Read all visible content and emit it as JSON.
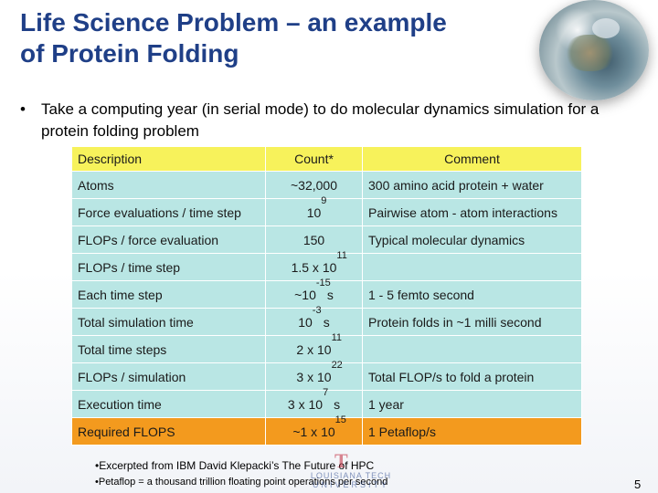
{
  "title": {
    "line1": "Life Science Problem – an example",
    "line2": "of Protein Folding"
  },
  "bullet": {
    "symbol": "•",
    "text": "Take a computing year (in serial mode) to do molecular dynamics simulation for a protein folding problem"
  },
  "table": {
    "headers": [
      "Description",
      "Count*",
      "Comment"
    ],
    "rows": [
      {
        "description": "Atoms",
        "count_base": "~32,000",
        "count_exp": "",
        "count_suffix": "",
        "comment": "300 amino acid protein + water"
      },
      {
        "description": "Force evaluations / time step",
        "count_base": "10",
        "count_exp": "9",
        "count_suffix": "",
        "comment": "Pairwise atom - atom interactions"
      },
      {
        "description": "FLOPs / force evaluation",
        "count_base": "150",
        "count_exp": "",
        "count_suffix": "",
        "comment": "Typical molecular dynamics"
      },
      {
        "description": "FLOPs / time step",
        "count_base": "1.5 x 10",
        "count_exp": "11",
        "count_suffix": "",
        "comment": ""
      },
      {
        "description": "Each time step",
        "count_base": "~10",
        "count_exp": "-15",
        "count_suffix": "s",
        "comment": "1 - 5 femto second"
      },
      {
        "description": "Total simulation time",
        "count_base": "10",
        "count_exp": "-3",
        "count_suffix": "s",
        "comment": "Protein folds in ~1 milli second"
      },
      {
        "description": "Total time steps",
        "count_base": "2 x 10",
        "count_exp": "11",
        "count_suffix": "",
        "comment": ""
      },
      {
        "description": "FLOPs / simulation",
        "count_base": "3 x 10",
        "count_exp": "22",
        "count_suffix": "",
        "comment": "Total FLOP/s to fold a protein"
      },
      {
        "description": "Execution time",
        "count_base": "3 x 10",
        "count_exp": "7",
        "count_suffix": "s",
        "comment": "1 year"
      },
      {
        "description": "Required FLOPS",
        "count_base": "~1 x 10",
        "count_exp": "15",
        "count_suffix": "",
        "comment": "1 Petaflop/s"
      }
    ],
    "colors": {
      "header": "#f7f25b",
      "body": "#b9e6e4",
      "highlight": "#f39a1e"
    }
  },
  "footnotes": {
    "line1": "•Excerpted from IBM David Klepacki’s The Future of HPC",
    "line2": "•Petaflop = a thousand trillion floating point operations per second"
  },
  "logo": {
    "mark": "T",
    "name1": "LOUISIANA TECH",
    "name2": "UNIVERSITY"
  },
  "page_number": "5"
}
